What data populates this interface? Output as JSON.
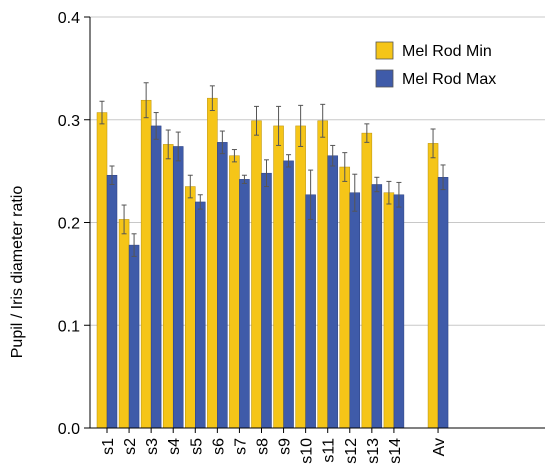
{
  "chart_data": {
    "type": "bar",
    "title": "",
    "xlabel": "",
    "ylabel": "Pupil / Iris diameter ratio",
    "ylim": [
      0,
      0.4
    ],
    "yticks": [
      "0.0",
      "0.1",
      "0.2",
      "0.3",
      "0.4"
    ],
    "grid": true,
    "legend_position": "top-right",
    "categories": [
      "s1",
      "s2",
      "s3",
      "s4",
      "s5",
      "s6",
      "s7",
      "s8",
      "s9",
      "s10",
      "s11",
      "s12",
      "s13",
      "s14",
      "Av"
    ],
    "series": [
      {
        "name": "Mel Rod Min",
        "color": "#F5C518",
        "values": [
          0.307,
          0.203,
          0.319,
          0.276,
          0.235,
          0.321,
          0.265,
          0.299,
          0.294,
          0.294,
          0.299,
          0.254,
          0.287,
          0.229,
          0.277
        ],
        "errors": [
          0.011,
          0.014,
          0.017,
          0.014,
          0.011,
          0.012,
          0.006,
          0.014,
          0.019,
          0.02,
          0.016,
          0.014,
          0.009,
          0.011,
          0.014
        ]
      },
      {
        "name": "Mel Rod Max",
        "color": "#3F5BA9",
        "values": [
          0.246,
          0.178,
          0.294,
          0.274,
          0.22,
          0.278,
          0.242,
          0.248,
          0.26,
          0.227,
          0.265,
          0.229,
          0.237,
          0.227,
          0.244
        ],
        "errors": [
          0.009,
          0.011,
          0.013,
          0.014,
          0.007,
          0.011,
          0.004,
          0.013,
          0.006,
          0.024,
          0.01,
          0.018,
          0.007,
          0.012,
          0.012
        ]
      }
    ]
  }
}
